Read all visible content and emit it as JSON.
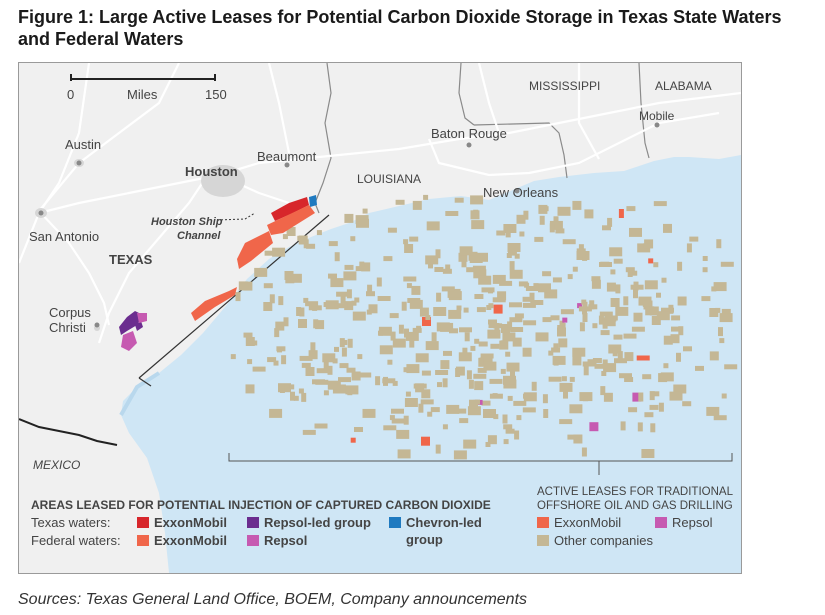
{
  "figure": {
    "title": "Figure 1: Large Active Leases for Potential Carbon Dioxide Storage in Texas State Waters and Federal Waters",
    "sources": "Sources: Texas General Land Office, BOEM, Company announcements"
  },
  "scale_bar": {
    "start": "0",
    "unit": "Miles",
    "end": "150"
  },
  "places": {
    "mississippi": "MISSISSIPPI",
    "alabama": "ALABAMA",
    "mobile": "Mobile",
    "baton_rouge": "Baton Rouge",
    "louisiana": "LOUISIANA",
    "new_orleans": "New Orleans",
    "beaumont": "Beaumont",
    "houston": "Houston",
    "austin": "Austin",
    "san_antonio": "San Antonio",
    "texas": "TEXAS",
    "corpus_line1": "Corpus",
    "corpus_line2": "Christi",
    "mexico": "MEXICO",
    "ship_channel_line1": "Houston Ship",
    "ship_channel_line2": "Channel"
  },
  "legend_co2": {
    "heading": "AREAS LEASED FOR POTENTIAL INJECTION OF CAPTURED CARBON DIOXIDE",
    "texas_waters_label": "Texas waters:",
    "federal_waters_label": "Federal waters:",
    "items": {
      "tx_exxon": {
        "label": "ExxonMobil",
        "color": "#d7262b"
      },
      "tx_repsol_group": {
        "label": "Repsol-led group",
        "color": "#6b2d8f"
      },
      "tx_chevron": {
        "label_line1": "Chevron-led",
        "label_line2": "group",
        "color": "#1f7ac0"
      },
      "fed_exxon": {
        "label": "ExxonMobil",
        "color": "#f0664a"
      },
      "fed_repsol": {
        "label": "Repsol",
        "color": "#c65ab1"
      }
    }
  },
  "legend_oil": {
    "heading_line1": "ACTIVE LEASES FOR TRADITIONAL",
    "heading_line2": "OFFSHORE OIL AND GAS DRILLING",
    "items": {
      "exxon": {
        "label": "ExxonMobil",
        "color": "#f0664a"
      },
      "repsol": {
        "label": "Repsol",
        "color": "#c65ab1"
      },
      "other": {
        "label": "Other companies",
        "color": "#c4b795"
      }
    }
  },
  "colors": {
    "land": "#f0f0f0",
    "water": "#cfe6f5",
    "roads": "#ffffff",
    "borders": "#8a8a8a",
    "urban": "#d9d9d9"
  }
}
